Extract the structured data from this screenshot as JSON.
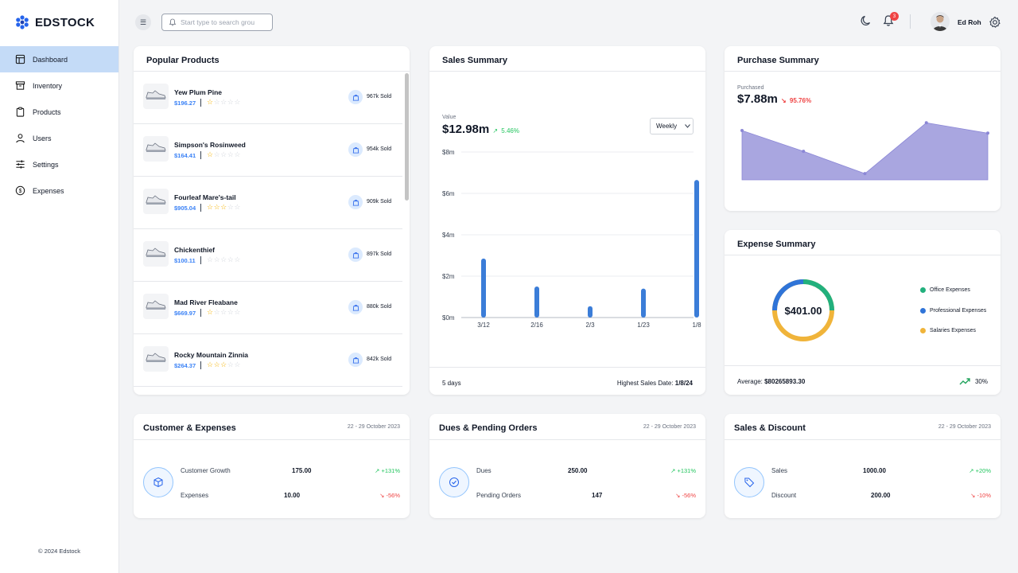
{
  "brand": {
    "name": "EDSTOCK"
  },
  "sidebar": {
    "items": [
      {
        "label": "Dashboard",
        "icon": "layout-icon",
        "active": true
      },
      {
        "label": "Inventory",
        "icon": "archive-icon"
      },
      {
        "label": "Products",
        "icon": "clipboard-icon"
      },
      {
        "label": "Users",
        "icon": "user-icon"
      },
      {
        "label": "Settings",
        "icon": "sliders-icon"
      },
      {
        "label": "Expenses",
        "icon": "dollar-circle-icon"
      }
    ],
    "copyright": "© 2024 Edstock"
  },
  "topbar": {
    "search_placeholder": "Start type to search grou",
    "notifications_count": "3",
    "user_name": "Ed Roh"
  },
  "popular_products": {
    "title": "Popular Products",
    "items": [
      {
        "name": "Yew Plum Pine",
        "price": "$196.27",
        "rating": 1,
        "sold": "967k Sold"
      },
      {
        "name": "Simpson's Rosinweed",
        "price": "$164.41",
        "rating": 1,
        "sold": "954k Sold"
      },
      {
        "name": "Fourleaf Mare's-tail",
        "price": "$905.04",
        "rating": 3,
        "sold": "909k Sold"
      },
      {
        "name": "Chickenthief",
        "price": "$100.11",
        "rating": 0,
        "sold": "897k Sold"
      },
      {
        "name": "Mad River Fleabane",
        "price": "$669.97",
        "rating": 1,
        "sold": "880k Sold"
      },
      {
        "name": "Rocky Mountain Zinnia",
        "price": "$264.37",
        "rating": 3,
        "sold": "842k Sold"
      }
    ]
  },
  "sales_summary": {
    "title": "Sales Summary",
    "value_label": "Value",
    "value": "$12.98m",
    "change": "5.46%",
    "period_select": "Weekly",
    "footer_days": "5 days",
    "footer_highest_label": "Highest Sales Date:",
    "footer_highest_date": "1/8/24"
  },
  "chart_data": {
    "type": "bar",
    "categories": [
      "3/12",
      "2/16",
      "2/3",
      "1/23",
      "1/8"
    ],
    "values": [
      2.85,
      1.5,
      0.55,
      1.4,
      6.65
    ],
    "yticks": [
      "$0m",
      "$2m",
      "$4m",
      "$6m",
      "$8m"
    ],
    "ylim": [
      0,
      8
    ],
    "color": "#3b7dd8"
  },
  "purchase_summary": {
    "title": "Purchase Summary",
    "label": "Purchased",
    "value": "$7.88m",
    "change": "95.76%",
    "series": [
      0.95,
      0.55,
      0.12,
      1.1,
      0.9
    ],
    "color": "#a9a6e0"
  },
  "expense_summary": {
    "title": "Expense Summary",
    "center_value": "$401.00",
    "legend": [
      {
        "label": "Office Expenses",
        "color": "#22b07d"
      },
      {
        "label": "Professional Expenses",
        "color": "#2f74d8"
      },
      {
        "label": "Salaries Expenses",
        "color": "#f0b43a"
      }
    ],
    "average_label": "Average:",
    "average_value": "$80265893.30",
    "change": "30%"
  },
  "stat_cards": [
    {
      "title": "Customer & Expenses",
      "date": "22 - 29 October 2023",
      "icon": "package-icon",
      "rows": [
        {
          "label": "Customer Growth",
          "value": "175.00",
          "change": "+131%",
          "dir": "up"
        },
        {
          "label": "Expenses",
          "value": "10.00",
          "change": "-56%",
          "dir": "down"
        }
      ]
    },
    {
      "title": "Dues & Pending Orders",
      "date": "22 - 29 October 2023",
      "icon": "check-circle-icon",
      "rows": [
        {
          "label": "Dues",
          "value": "250.00",
          "change": "+131%",
          "dir": "up"
        },
        {
          "label": "Pending Orders",
          "value": "147",
          "change": "-56%",
          "dir": "down"
        }
      ]
    },
    {
      "title": "Sales & Discount",
      "date": "22 - 29 October 2023",
      "icon": "tag-icon",
      "rows": [
        {
          "label": "Sales",
          "value": "1000.00",
          "change": "+20%",
          "dir": "up"
        },
        {
          "label": "Discount",
          "value": "200.00",
          "change": "-10%",
          "dir": "down"
        }
      ]
    }
  ]
}
